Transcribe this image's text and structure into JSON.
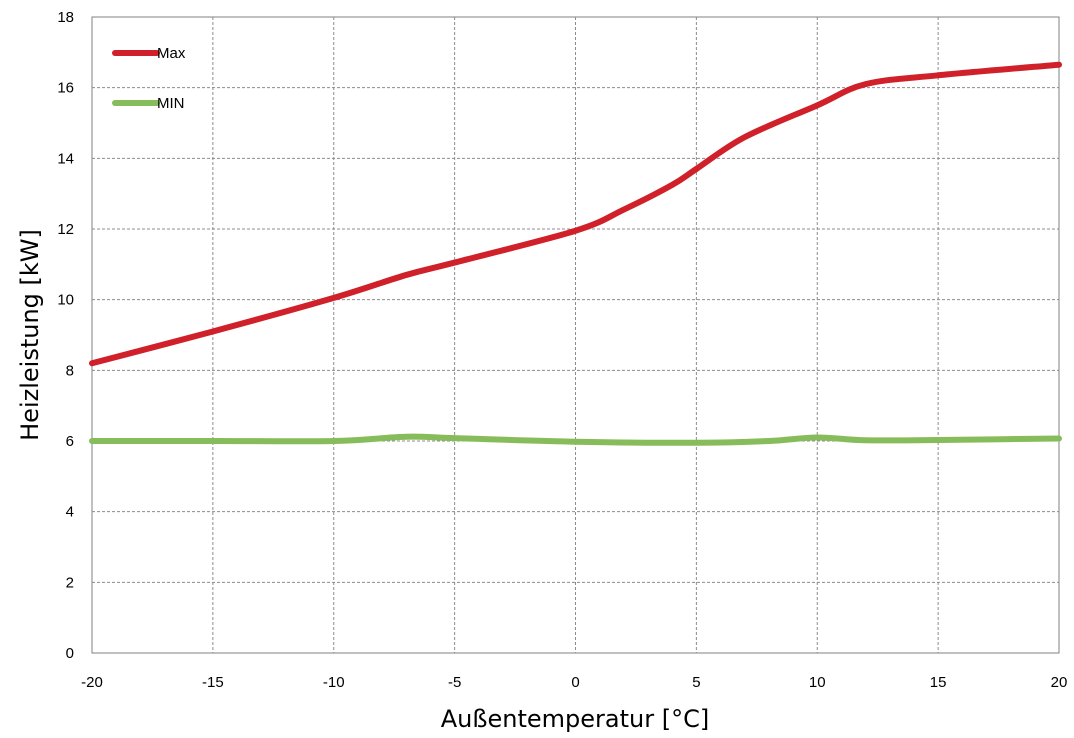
{
  "chart_data": {
    "type": "line",
    "title": "",
    "xlabel": "Außentemperatur [°C]",
    "ylabel": "Heizleistung [kW]",
    "xlim": [
      -20,
      20
    ],
    "ylim": [
      0,
      18
    ],
    "xticks": [
      -20,
      -15,
      -10,
      -5,
      0,
      5,
      10,
      15,
      20
    ],
    "yticks": [
      0,
      2,
      4,
      6,
      8,
      10,
      12,
      14,
      16,
      18
    ],
    "grid": true,
    "legend_position": "top-left",
    "series": [
      {
        "name": "Max",
        "color": "#d0202a",
        "x": [
          -20,
          -15,
          -10,
          -7,
          -5,
          0,
          2,
          4,
          5,
          7,
          10,
          12,
          15,
          20
        ],
        "y": [
          8.2,
          9.1,
          10.05,
          10.7,
          11.05,
          11.95,
          12.55,
          13.25,
          13.7,
          14.6,
          15.5,
          16.1,
          16.35,
          16.65
        ]
      },
      {
        "name": "MIN",
        "color": "#86bc5a",
        "x": [
          -20,
          -15,
          -10,
          -7,
          -5,
          0,
          5,
          8,
          10,
          12,
          15,
          20
        ],
        "y": [
          6.0,
          6.0,
          6.0,
          6.12,
          6.08,
          5.98,
          5.95,
          6.0,
          6.1,
          6.02,
          6.03,
          6.07
        ]
      }
    ]
  }
}
